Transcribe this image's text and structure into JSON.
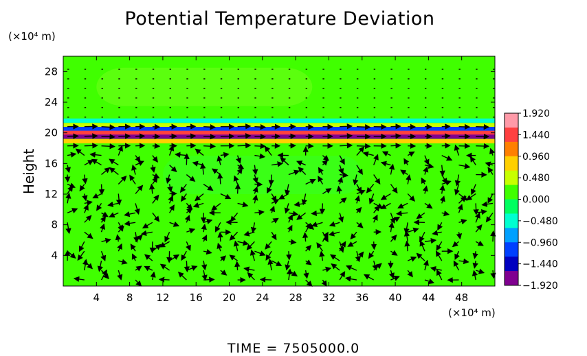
{
  "chart_data": {
    "type": "heatmap",
    "title": "Potential Temperature Deviation",
    "ylabel": "Height",
    "x_unit_label": "(×10⁴ m)",
    "y_unit_label": "(×10⁴ m)",
    "xlim": [
      0,
      52
    ],
    "ylim": [
      0,
      30
    ],
    "x_ticks": [
      "4",
      "8",
      "12",
      "16",
      "20",
      "24",
      "28",
      "32",
      "36",
      "40",
      "44",
      "48"
    ],
    "x_tick_values": [
      4,
      8,
      12,
      16,
      20,
      24,
      28,
      32,
      36,
      40,
      44,
      48
    ],
    "y_ticks": [
      "4",
      "8",
      "12",
      "16",
      "20",
      "24",
      "28"
    ],
    "y_tick_values": [
      4,
      8,
      12,
      16,
      20,
      24,
      28
    ],
    "colorbar": {
      "min": -1.92,
      "max": 1.92,
      "ticks": [
        "1.920",
        "1.440",
        "0.960",
        "0.480",
        "0.000",
        "−0.480",
        "−0.960",
        "−1.440",
        "−1.920"
      ],
      "tick_values": [
        1.92,
        1.44,
        0.96,
        0.48,
        0.0,
        -0.48,
        -0.96,
        -1.44,
        -1.92
      ],
      "colors": [
        "#ff9aa8",
        "#ff4040",
        "#ff8000",
        "#ffd000",
        "#c8ff00",
        "#40ff00",
        "#00ff60",
        "#00ffd0",
        "#00a0ff",
        "#0040ff",
        "#0000c0",
        "#800090"
      ]
    },
    "field_description_values": {
      "background": 0.1,
      "bands": [
        {
          "y": 21.6,
          "value": -0.4
        },
        {
          "y": 21.0,
          "value": 0.5
        },
        {
          "y": 20.5,
          "value": -1.2
        },
        {
          "y": 20.0,
          "value": 1.5
        },
        {
          "y": 19.5,
          "value": -1.6
        },
        {
          "y": 18.9,
          "value": 0.9
        }
      ]
    },
    "vector_field": "wind arrows over domain",
    "time_label": "TIME  =  7505000.0"
  }
}
